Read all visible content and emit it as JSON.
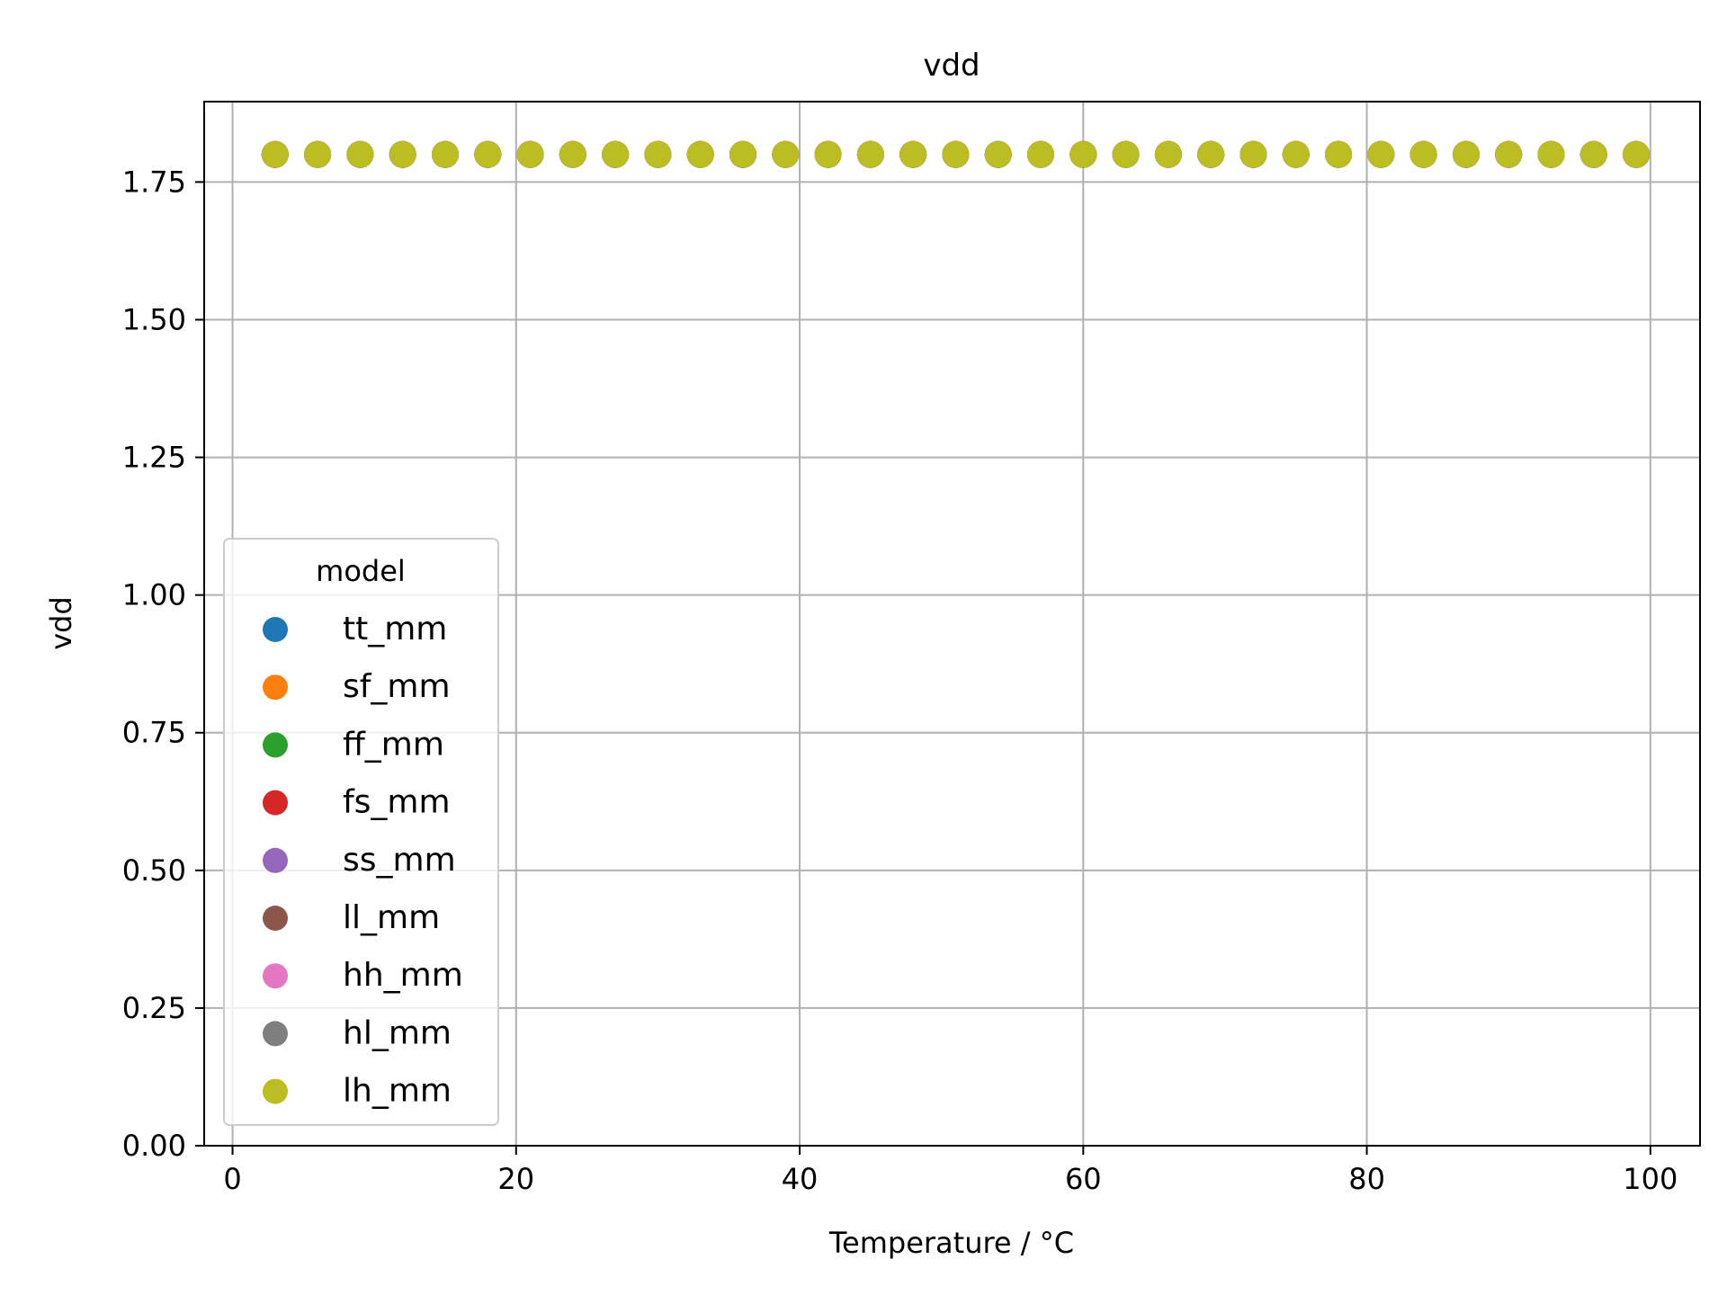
{
  "chart_data": {
    "type": "scatter",
    "title": "vdd",
    "xlabel": "Temperature / °C",
    "ylabel": "vdd",
    "xlim": [
      -2,
      103.5
    ],
    "ylim": [
      0,
      1.896
    ],
    "xticks": [
      0,
      20,
      40,
      60,
      80,
      100
    ],
    "xtick_labels": [
      "0",
      "20",
      "40",
      "60",
      "80",
      "100"
    ],
    "yticks": [
      0,
      0.25,
      0.5,
      0.75,
      1.0,
      1.25,
      1.5,
      1.75
    ],
    "ytick_labels": [
      "0.00",
      "0.25",
      "0.50",
      "0.75",
      "1.00",
      "1.25",
      "1.50",
      "1.75"
    ],
    "grid": true,
    "legend": {
      "title": "model",
      "placement": "lower-left"
    },
    "x": [
      3,
      6,
      9,
      12,
      15,
      18,
      21,
      24,
      27,
      30,
      33,
      36,
      39,
      42,
      45,
      48,
      51,
      54,
      57,
      60,
      63,
      66,
      69,
      72,
      75,
      78,
      81,
      84,
      87,
      90,
      93,
      96,
      99
    ],
    "series": [
      {
        "name": "tt_mm",
        "color": "#1f77b4",
        "values": [
          1.8,
          1.8,
          1.8,
          1.8,
          1.8,
          1.8,
          1.8,
          1.8,
          1.8,
          1.8,
          1.8,
          1.8,
          1.8,
          1.8,
          1.8,
          1.8,
          1.8,
          1.8,
          1.8,
          1.8,
          1.8,
          1.8,
          1.8,
          1.8,
          1.8,
          1.8,
          1.8,
          1.8,
          1.8,
          1.8,
          1.8,
          1.8,
          1.8
        ]
      },
      {
        "name": "sf_mm",
        "color": "#ff7f0e",
        "values": [
          1.8,
          1.8,
          1.8,
          1.8,
          1.8,
          1.8,
          1.8,
          1.8,
          1.8,
          1.8,
          1.8,
          1.8,
          1.8,
          1.8,
          1.8,
          1.8,
          1.8,
          1.8,
          1.8,
          1.8,
          1.8,
          1.8,
          1.8,
          1.8,
          1.8,
          1.8,
          1.8,
          1.8,
          1.8,
          1.8,
          1.8,
          1.8,
          1.8
        ]
      },
      {
        "name": "ff_mm",
        "color": "#2ca02c",
        "values": [
          1.8,
          1.8,
          1.8,
          1.8,
          1.8,
          1.8,
          1.8,
          1.8,
          1.8,
          1.8,
          1.8,
          1.8,
          1.8,
          1.8,
          1.8,
          1.8,
          1.8,
          1.8,
          1.8,
          1.8,
          1.8,
          1.8,
          1.8,
          1.8,
          1.8,
          1.8,
          1.8,
          1.8,
          1.8,
          1.8,
          1.8,
          1.8,
          1.8
        ]
      },
      {
        "name": "fs_mm",
        "color": "#d62728",
        "values": [
          1.8,
          1.8,
          1.8,
          1.8,
          1.8,
          1.8,
          1.8,
          1.8,
          1.8,
          1.8,
          1.8,
          1.8,
          1.8,
          1.8,
          1.8,
          1.8,
          1.8,
          1.8,
          1.8,
          1.8,
          1.8,
          1.8,
          1.8,
          1.8,
          1.8,
          1.8,
          1.8,
          1.8,
          1.8,
          1.8,
          1.8,
          1.8,
          1.8
        ]
      },
      {
        "name": "ss_mm",
        "color": "#9467bd",
        "values": [
          1.8,
          1.8,
          1.8,
          1.8,
          1.8,
          1.8,
          1.8,
          1.8,
          1.8,
          1.8,
          1.8,
          1.8,
          1.8,
          1.8,
          1.8,
          1.8,
          1.8,
          1.8,
          1.8,
          1.8,
          1.8,
          1.8,
          1.8,
          1.8,
          1.8,
          1.8,
          1.8,
          1.8,
          1.8,
          1.8,
          1.8,
          1.8,
          1.8
        ]
      },
      {
        "name": "ll_mm",
        "color": "#8c564b",
        "values": [
          1.8,
          1.8,
          1.8,
          1.8,
          1.8,
          1.8,
          1.8,
          1.8,
          1.8,
          1.8,
          1.8,
          1.8,
          1.8,
          1.8,
          1.8,
          1.8,
          1.8,
          1.8,
          1.8,
          1.8,
          1.8,
          1.8,
          1.8,
          1.8,
          1.8,
          1.8,
          1.8,
          1.8,
          1.8,
          1.8,
          1.8,
          1.8,
          1.8
        ]
      },
      {
        "name": "hh_mm",
        "color": "#e377c2",
        "values": [
          1.8,
          1.8,
          1.8,
          1.8,
          1.8,
          1.8,
          1.8,
          1.8,
          1.8,
          1.8,
          1.8,
          1.8,
          1.8,
          1.8,
          1.8,
          1.8,
          1.8,
          1.8,
          1.8,
          1.8,
          1.8,
          1.8,
          1.8,
          1.8,
          1.8,
          1.8,
          1.8,
          1.8,
          1.8,
          1.8,
          1.8,
          1.8,
          1.8
        ]
      },
      {
        "name": "hl_mm",
        "color": "#7f7f7f",
        "values": [
          1.8,
          1.8,
          1.8,
          1.8,
          1.8,
          1.8,
          1.8,
          1.8,
          1.8,
          1.8,
          1.8,
          1.8,
          1.8,
          1.8,
          1.8,
          1.8,
          1.8,
          1.8,
          1.8,
          1.8,
          1.8,
          1.8,
          1.8,
          1.8,
          1.8,
          1.8,
          1.8,
          1.8,
          1.8,
          1.8,
          1.8,
          1.8,
          1.8
        ]
      },
      {
        "name": "lh_mm",
        "color": "#bcbd22",
        "values": [
          1.8,
          1.8,
          1.8,
          1.8,
          1.8,
          1.8,
          1.8,
          1.8,
          1.8,
          1.8,
          1.8,
          1.8,
          1.8,
          1.8,
          1.8,
          1.8,
          1.8,
          1.8,
          1.8,
          1.8,
          1.8,
          1.8,
          1.8,
          1.8,
          1.8,
          1.8,
          1.8,
          1.8,
          1.8,
          1.8,
          1.8,
          1.8,
          1.8
        ]
      }
    ]
  }
}
